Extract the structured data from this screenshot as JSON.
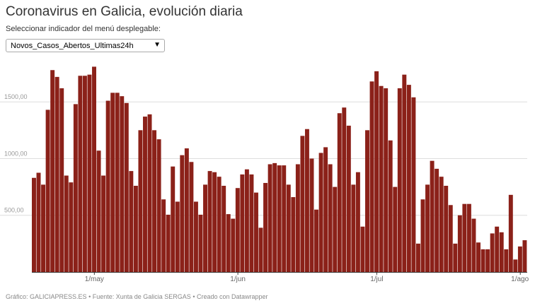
{
  "title": "Coronavirus en Galicia, evolución diaria",
  "subtitle": "Seleccionar indicador del menú desplegable:",
  "dropdown": {
    "selected": "Novos_Casos_Abertos_Ultimas24h"
  },
  "footer": {
    "credit": "Gráfico: GALICIAPRESS.ES",
    "source": "Fuente: Xunta de Galicia SERGAS",
    "made_with": "Creado con Datawrapper",
    "separator": "•"
  },
  "colors": {
    "bar": "#8b2119",
    "grid": "#dddddd",
    "tick_text": "#999999",
    "axis": "#333333"
  },
  "chart_data": {
    "type": "bar",
    "title": "Coronavirus en Galicia, evolución diaria",
    "series_name": "Novos_Casos_Abertos_Ultimas24h",
    "ylim": [
      0,
      1850
    ],
    "yticks": [
      {
        "value": 500,
        "label": "500,00"
      },
      {
        "value": 1000,
        "label": "1000,00"
      },
      {
        "value": 1500,
        "label": "1500,00"
      }
    ],
    "xticks": [
      {
        "index": 13,
        "label": "1/may"
      },
      {
        "index": 44,
        "label": "1/jun"
      },
      {
        "index": 74,
        "label": "1/jul"
      },
      {
        "index": 105,
        "label": "1/ago"
      }
    ],
    "values": [
      830,
      875,
      770,
      1430,
      1780,
      1720,
      1620,
      850,
      790,
      1480,
      1730,
      1730,
      1740,
      1810,
      1070,
      850,
      1510,
      1580,
      1580,
      1550,
      1490,
      890,
      760,
      1250,
      1370,
      1390,
      1250,
      1170,
      640,
      505,
      930,
      620,
      1030,
      1090,
      970,
      620,
      505,
      770,
      890,
      880,
      840,
      760,
      510,
      470,
      740,
      860,
      905,
      860,
      700,
      390,
      785,
      950,
      960,
      940,
      940,
      770,
      660,
      950,
      1200,
      1260,
      1000,
      550,
      1050,
      1100,
      950,
      750,
      1400,
      1450,
      1290,
      770,
      880,
      400,
      1250,
      1680,
      1770,
      1640,
      1620,
      1160,
      750,
      1620,
      1740,
      1650,
      1540,
      250,
      640,
      770,
      980,
      910,
      840,
      760,
      590,
      250,
      500,
      600,
      600,
      470,
      260,
      200,
      200,
      340,
      400,
      350,
      200,
      680,
      110,
      225,
      280
    ]
  }
}
